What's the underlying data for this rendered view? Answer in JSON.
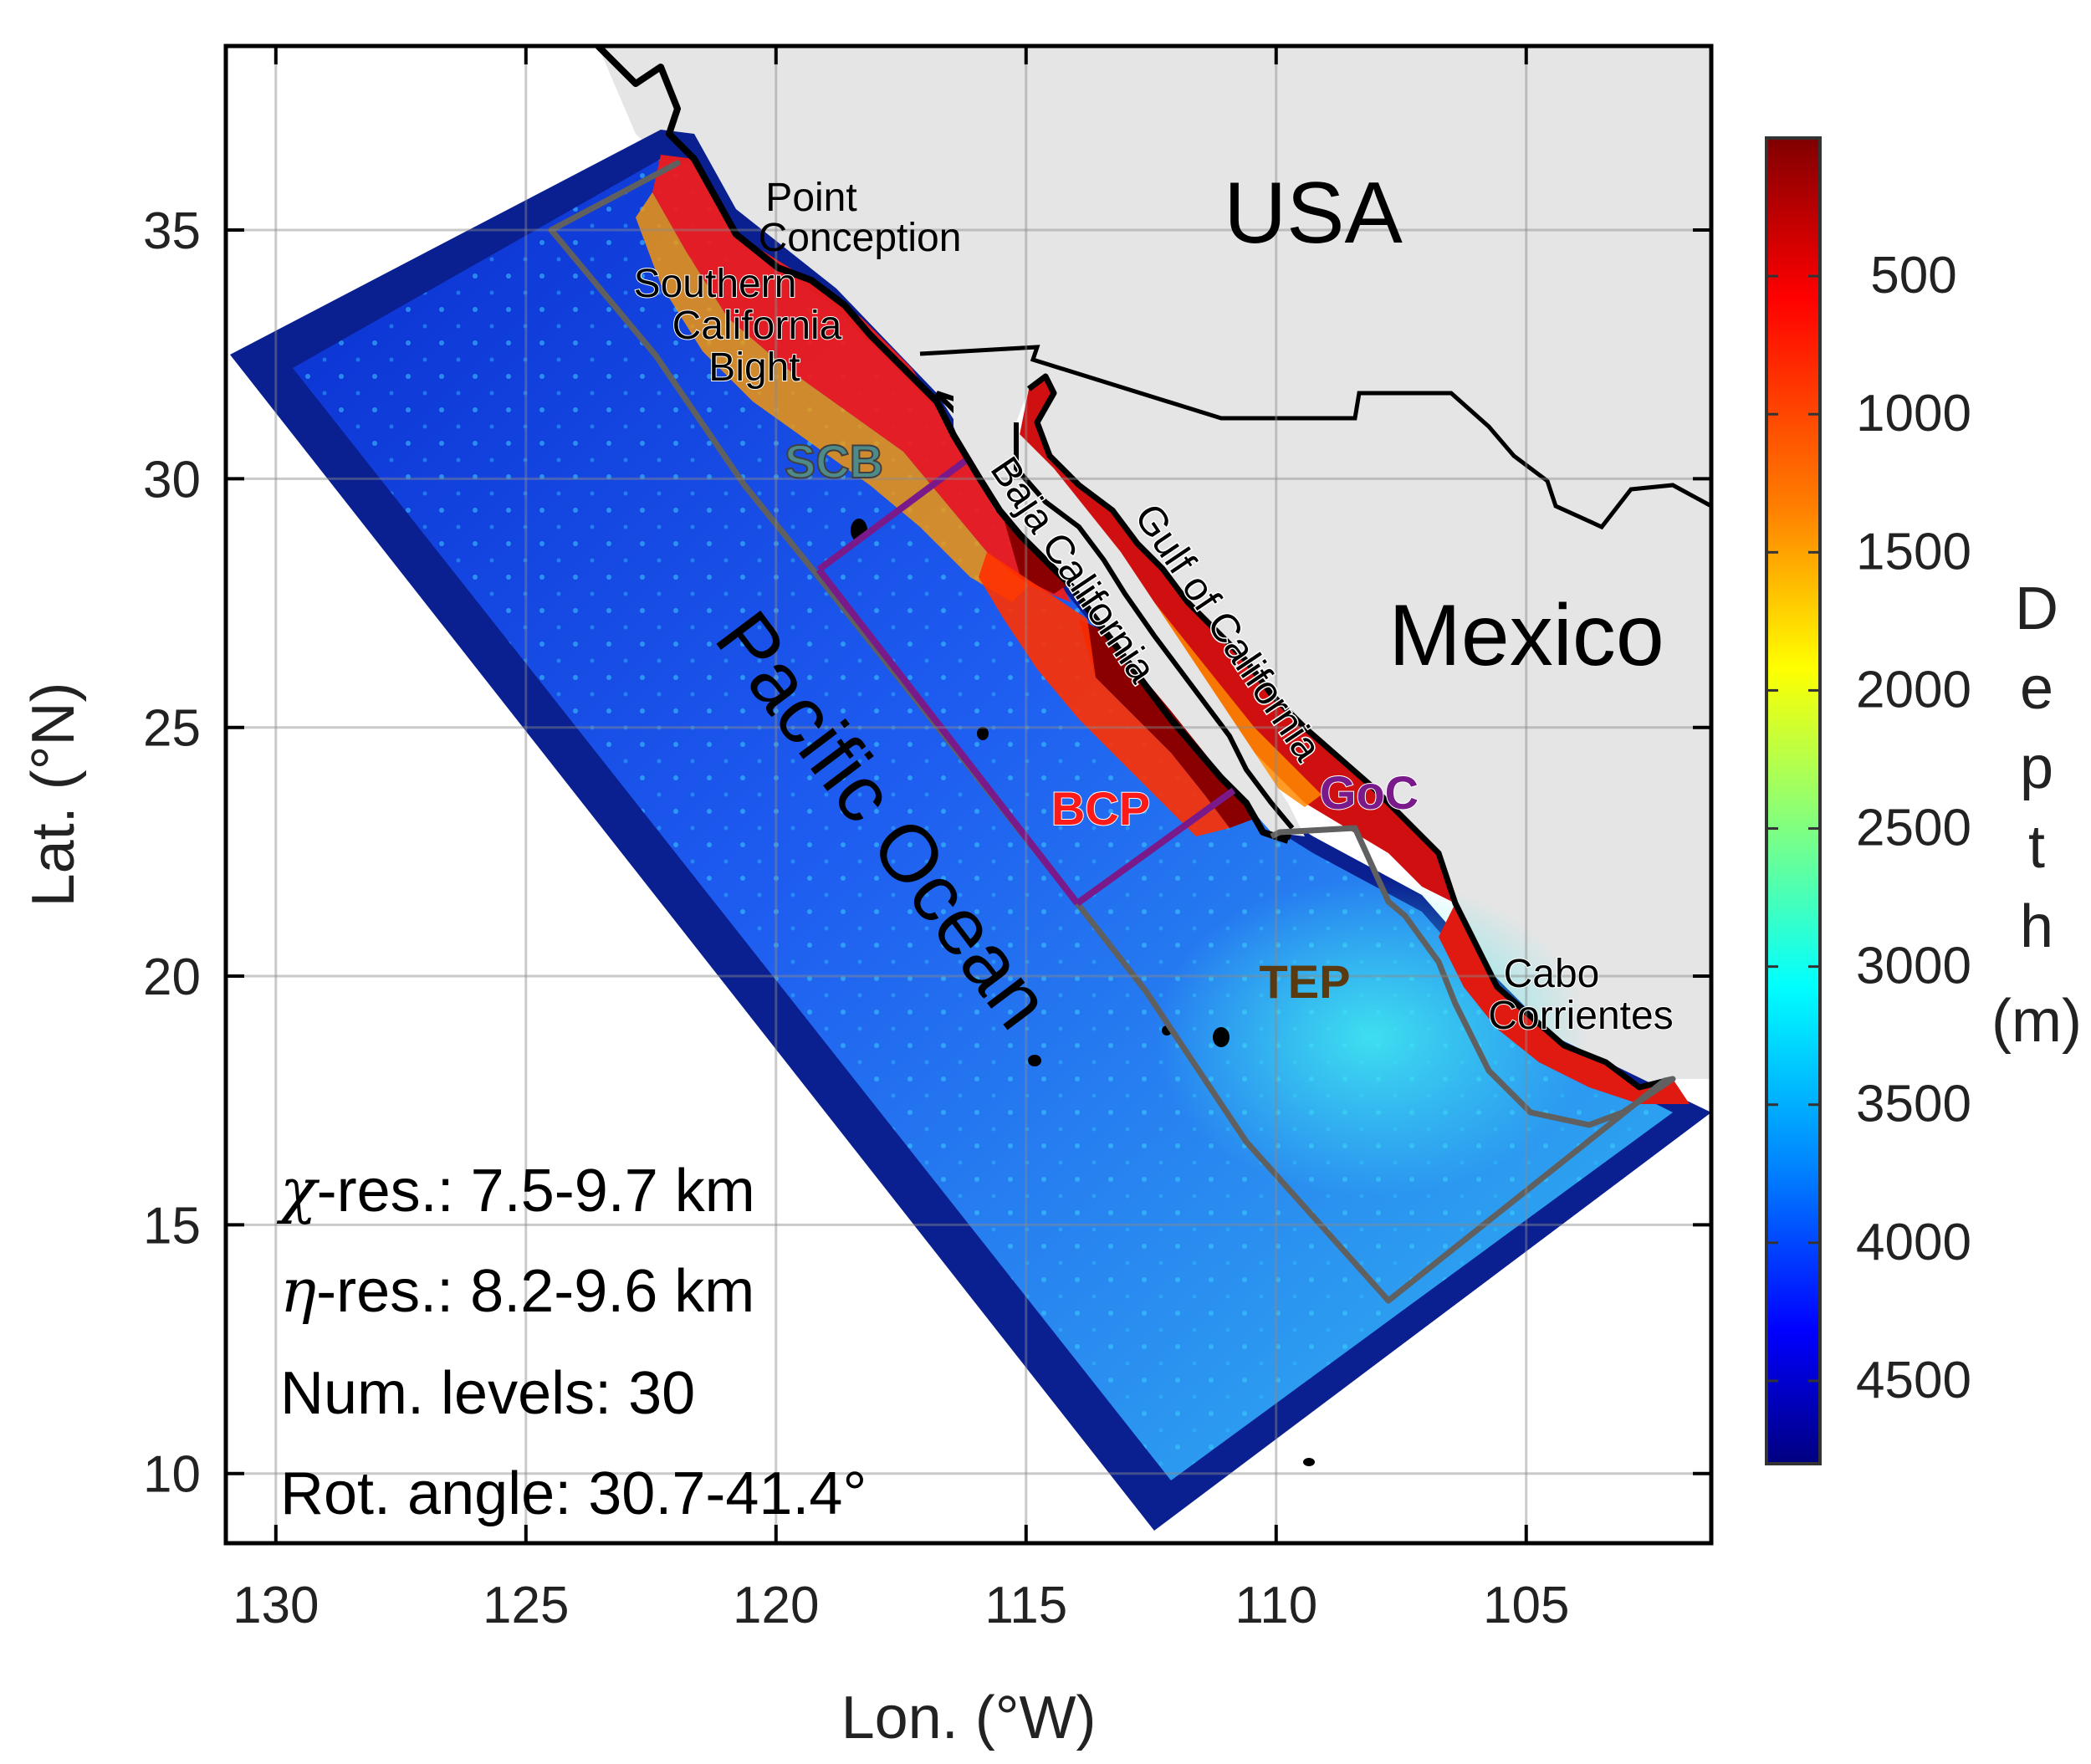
{
  "map": {
    "x_axis_label": "Lon.  (°W)",
    "y_axis_label": "Lat.  (°N)",
    "lon_ticks": [
      "130",
      "125",
      "120",
      "115",
      "110",
      "105"
    ],
    "lat_ticks": [
      "35",
      "30",
      "25",
      "20",
      "15",
      "10"
    ],
    "lon_range": [
      131,
      101.3
    ],
    "lat_range": [
      8.6,
      38.7
    ],
    "grid": true,
    "countries": [
      "USA",
      "Mexico"
    ],
    "ocean_label": "Pacific Ocean",
    "place_labels": {
      "point_conception": [
        "Point",
        "Conception"
      ],
      "southern_california_bight": [
        "Southern",
        "California",
        "Bight"
      ],
      "baja_california": "Baja California",
      "gulf_of_california": "Gulf of California",
      "cabo_corrientes": [
        "Cabo",
        "Corrientes"
      ]
    },
    "regions": [
      {
        "code": "SCB",
        "color": "#4f8a8a"
      },
      {
        "code": "BCP",
        "color": "#ff1a1a"
      },
      {
        "code": "GoC",
        "color": "#7a1a8a"
      },
      {
        "code": "TEP",
        "color": "#5a3a10"
      }
    ],
    "info_lines": {
      "chi_symbol": "χ",
      "chi_text": "-res.: 7.5-9.7 km",
      "eta_symbol": "η",
      "eta_text": "-res.: 8.2-9.6 km",
      "levels": "Num. levels: 30",
      "rotation": "Rot. angle: 30.7-41.4°"
    },
    "colors": {
      "land": "#e5e5e5",
      "boundary": "#606060",
      "subregion": "#7a1a8a",
      "coast": "#000000"
    }
  },
  "colorbar": {
    "title_letters": [
      "D",
      "e",
      "p",
      "t",
      "h"
    ],
    "unit": "(m)",
    "ticks": [
      "500",
      "1000",
      "1500",
      "2000",
      "2500",
      "3000",
      "3500",
      "4000",
      "4500"
    ],
    "range_m": [
      0,
      4800
    ],
    "colormap": "jet (reversed: shallow = dark red, deep = dark blue)"
  }
}
